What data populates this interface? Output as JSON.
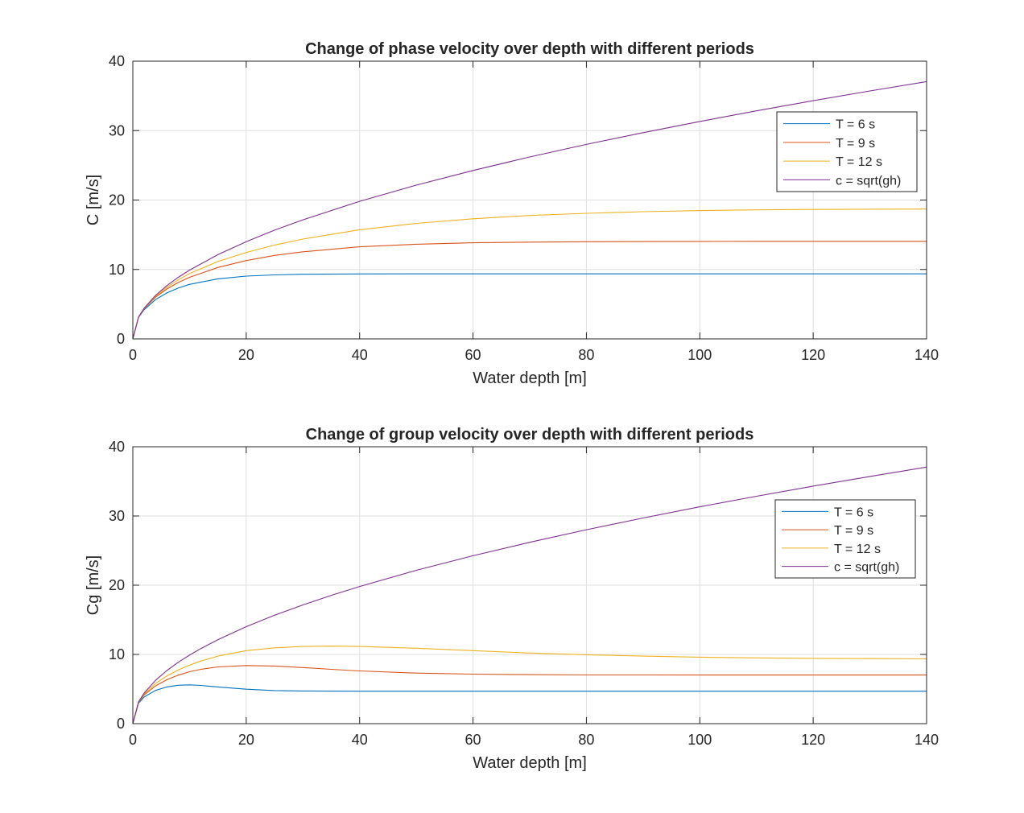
{
  "chart_data": [
    {
      "type": "line",
      "title": "Change of phase velocity over depth with different periods",
      "xlabel": "Water depth [m]",
      "ylabel": "C [m/s]",
      "xlim": [
        0,
        140
      ],
      "ylim": [
        0,
        40
      ],
      "xticks": [
        0,
        20,
        40,
        60,
        80,
        100,
        120,
        140
      ],
      "yticks": [
        0,
        10,
        20,
        30,
        40
      ],
      "grid": true,
      "legend_position": "top-right",
      "x": [
        0,
        1,
        2,
        4,
        6,
        8,
        10,
        15,
        20,
        25,
        30,
        40,
        50,
        60,
        70,
        80,
        90,
        100,
        110,
        120,
        130,
        140
      ],
      "series": [
        {
          "name": "T = 6 s",
          "color": "#0072BD",
          "values": [
            0,
            3.06,
            4.21,
            5.66,
            6.62,
            7.32,
            7.85,
            8.65,
            9.04,
            9.22,
            9.31,
            9.36,
            9.37,
            9.37,
            9.37,
            9.37,
            9.37,
            9.37,
            9.37,
            9.37,
            9.37,
            9.37
          ]
        },
        {
          "name": "T = 9 s",
          "color": "#D95319",
          "values": [
            0,
            3.1,
            4.35,
            6.01,
            7.19,
            8.12,
            8.87,
            10.28,
            11.28,
            12.02,
            12.55,
            13.26,
            13.64,
            13.84,
            13.94,
            13.99,
            14.02,
            14.04,
            14.05,
            14.05,
            14.05,
            14.05
          ]
        },
        {
          "name": "T = 12 s",
          "color": "#EDB120",
          "values": [
            0,
            3.12,
            4.4,
            6.14,
            7.44,
            8.5,
            9.4,
            11.14,
            12.45,
            13.52,
            14.38,
            15.72,
            16.64,
            17.3,
            17.77,
            18.09,
            18.32,
            18.48,
            18.58,
            18.64,
            18.68,
            18.7
          ]
        },
        {
          "name": "c = sqrt(gh)",
          "color": "#7E2F8E",
          "values": [
            0,
            3.13,
            4.43,
            6.26,
            7.67,
            8.86,
            9.9,
            12.13,
            14.01,
            15.66,
            17.15,
            19.81,
            22.15,
            24.26,
            26.2,
            28.01,
            29.71,
            31.32,
            32.85,
            34.31,
            35.71,
            37.06
          ]
        }
      ]
    },
    {
      "type": "line",
      "title": "Change of group velocity over depth with different periods",
      "xlabel": "Water depth [m]",
      "ylabel": "Cg [m/s]",
      "xlim": [
        0,
        140
      ],
      "ylim": [
        0,
        40
      ],
      "xticks": [
        0,
        20,
        40,
        60,
        80,
        100,
        120,
        140
      ],
      "yticks": [
        0,
        10,
        20,
        30,
        40
      ],
      "grid": true,
      "legend_position": "top-right",
      "x": [
        0,
        1,
        2,
        4,
        6,
        8,
        10,
        12,
        15,
        20,
        25,
        30,
        35,
        40,
        50,
        60,
        70,
        80,
        90,
        100,
        110,
        120,
        130,
        140
      ],
      "series": [
        {
          "name": "T = 6 s",
          "color": "#0072BD",
          "values": [
            0,
            2.95,
            3.85,
            4.8,
            5.3,
            5.55,
            5.6,
            5.52,
            5.3,
            4.98,
            4.78,
            4.72,
            4.7,
            4.69,
            4.69,
            4.69,
            4.69,
            4.69,
            4.69,
            4.69,
            4.69,
            4.69,
            4.69,
            4.69
          ]
        },
        {
          "name": "T = 9 s",
          "color": "#D95319",
          "values": [
            0,
            3.05,
            4.15,
            5.45,
            6.35,
            7.0,
            7.5,
            7.85,
            8.2,
            8.4,
            8.32,
            8.1,
            7.85,
            7.62,
            7.3,
            7.15,
            7.08,
            7.04,
            7.03,
            7.02,
            7.02,
            7.02,
            7.02,
            7.02
          ]
        },
        {
          "name": "T = 12 s",
          "color": "#EDB120",
          "values": [
            0,
            3.08,
            4.3,
            5.8,
            6.9,
            7.75,
            8.45,
            9.05,
            9.75,
            10.55,
            10.95,
            11.15,
            11.2,
            11.15,
            10.9,
            10.55,
            10.2,
            9.95,
            9.75,
            9.6,
            9.5,
            9.43,
            9.39,
            9.37
          ]
        },
        {
          "name": "c = sqrt(gh)",
          "color": "#7E2F8E",
          "values": [
            0,
            3.13,
            4.43,
            6.26,
            7.67,
            8.86,
            9.9,
            10.85,
            12.13,
            14.01,
            15.66,
            17.15,
            18.53,
            19.81,
            22.15,
            24.26,
            26.2,
            28.01,
            29.71,
            31.32,
            32.85,
            34.31,
            35.71,
            37.06
          ]
        }
      ]
    }
  ]
}
